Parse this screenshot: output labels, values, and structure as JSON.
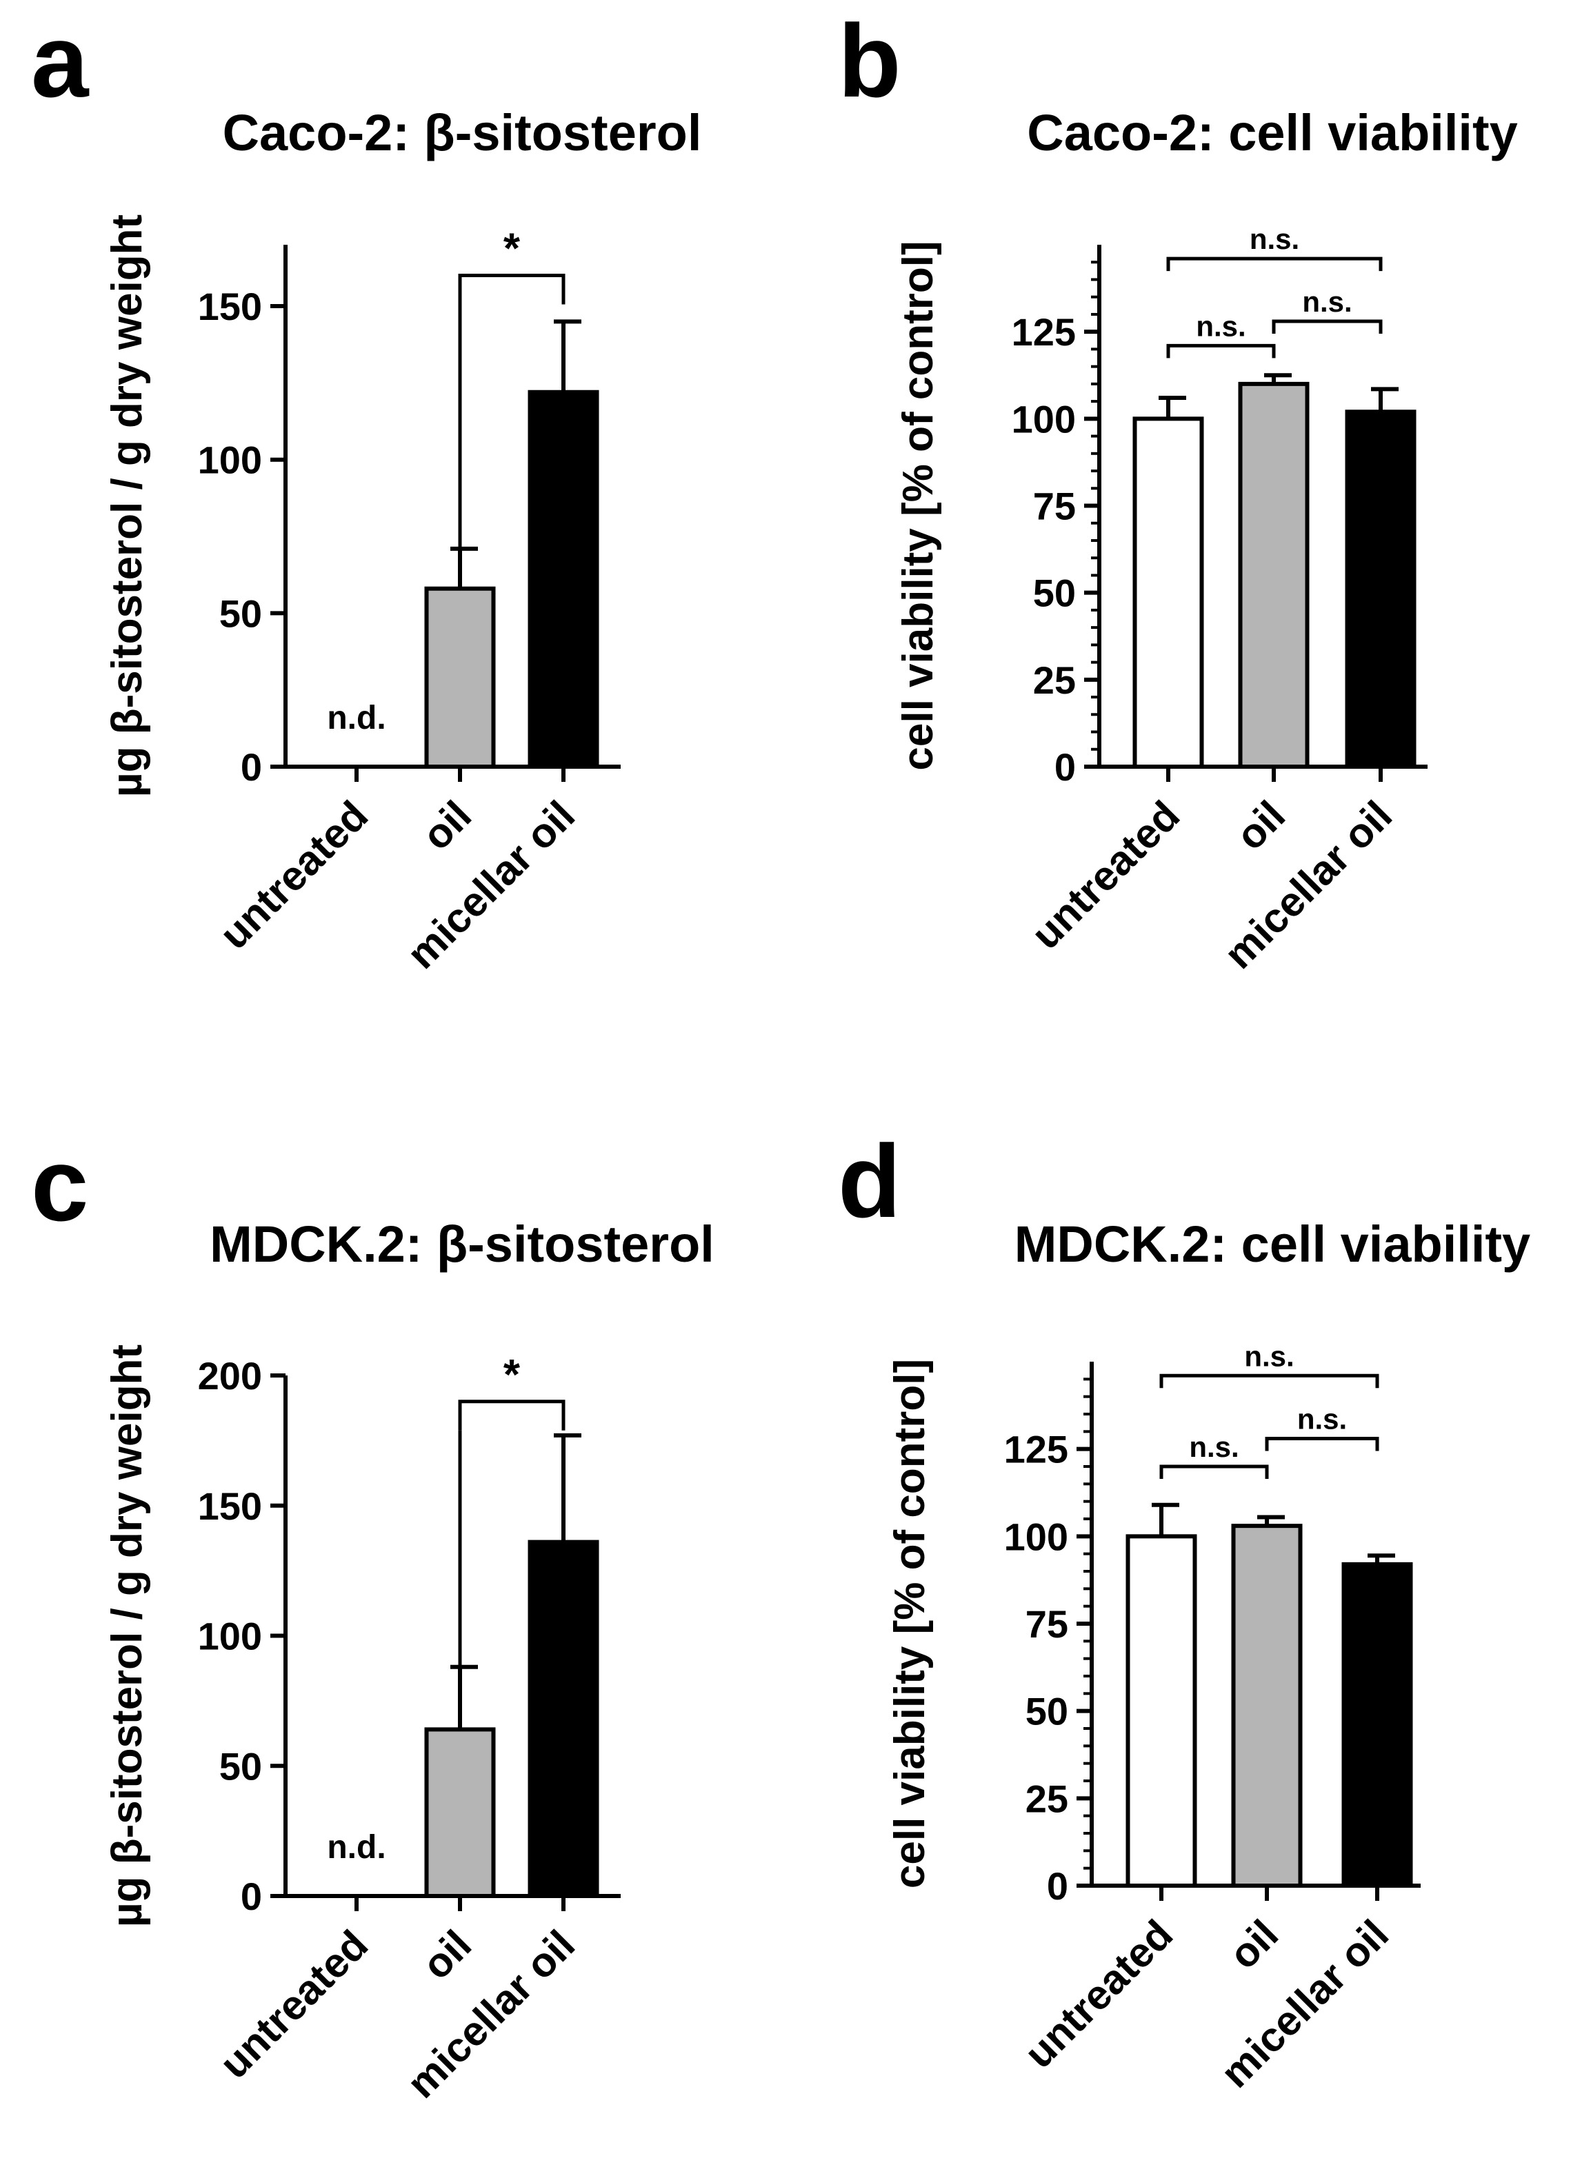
{
  "colors": {
    "untreated": "#ffffff",
    "oil": "#b5b5b5",
    "micellar_oil": "#000000",
    "axis": "#000000"
  },
  "chart_data": [
    {
      "id": "a",
      "type": "bar",
      "panel_label": "a",
      "title": "Caco-2: β-sitosterol",
      "ylabel": "µg β-sitosterol / g dry weight",
      "xlabel": "",
      "categories": [
        "untreated",
        "oil",
        "micellar oil"
      ],
      "values": [
        0,
        58,
        122
      ],
      "errors": [
        0,
        13,
        23
      ],
      "ylim": [
        0,
        170
      ],
      "yticks": [
        0,
        50,
        100,
        150
      ],
      "ytick_labels": [
        "0",
        "50",
        "100",
        "150"
      ],
      "minor_ticks": false,
      "bar_notes": [
        "n.d.",
        "",
        ""
      ],
      "significance": [
        {
          "from": 1,
          "to": 2,
          "y": 160,
          "label": "*",
          "style": "star"
        }
      ]
    },
    {
      "id": "b",
      "type": "bar",
      "panel_label": "b",
      "title": "Caco-2: cell viability",
      "ylabel": "cell viability [% of control]",
      "xlabel": "",
      "categories": [
        "untreated",
        "oil",
        "micellar oil"
      ],
      "values": [
        100,
        110,
        102
      ],
      "errors": [
        6,
        2.5,
        6.5
      ],
      "ylim": [
        0,
        150
      ],
      "yticks": [
        0,
        25,
        50,
        75,
        100,
        125
      ],
      "ytick_labels": [
        "0",
        "25",
        "50",
        "75",
        "100",
        "125"
      ],
      "minor_ticks": true,
      "bar_notes": [
        "",
        "",
        ""
      ],
      "significance": [
        {
          "from": 0,
          "to": 1,
          "y": 121,
          "label": "n.s.",
          "style": "ns"
        },
        {
          "from": 1,
          "to": 2,
          "y": 128,
          "label": "n.s.",
          "style": "ns"
        },
        {
          "from": 0,
          "to": 2,
          "y": 146,
          "label": "n.s.",
          "style": "ns"
        }
      ]
    },
    {
      "id": "c",
      "type": "bar",
      "panel_label": "c",
      "title": "MDCK.2: β-sitosterol",
      "ylabel": "µg β-sitosterol / g dry weight",
      "xlabel": "",
      "categories": [
        "untreated",
        "oil",
        "micellar oil"
      ],
      "values": [
        0,
        64,
        136
      ],
      "errors": [
        0,
        24,
        41
      ],
      "ylim": [
        0,
        200
      ],
      "yticks": [
        0,
        50,
        100,
        150,
        200
      ],
      "ytick_labels": [
        "0",
        "50",
        "100",
        "150",
        "200"
      ],
      "minor_ticks": false,
      "bar_notes": [
        "n.d.",
        "",
        ""
      ],
      "significance": [
        {
          "from": 1,
          "to": 2,
          "y": 190,
          "label": "*",
          "style": "star"
        }
      ]
    },
    {
      "id": "d",
      "type": "bar",
      "panel_label": "d",
      "title": "MDCK.2: cell viability",
      "ylabel": "cell viability [% of control]",
      "xlabel": "",
      "categories": [
        "untreated",
        "oil",
        "micellar oil"
      ],
      "values": [
        100,
        103,
        92
      ],
      "errors": [
        9,
        2.5,
        2.5
      ],
      "ylim": [
        0,
        150
      ],
      "yticks": [
        0,
        25,
        50,
        75,
        100,
        125
      ],
      "ytick_labels": [
        "0",
        "25",
        "50",
        "75",
        "100",
        "125"
      ],
      "minor_ticks": true,
      "bar_notes": [
        "",
        "",
        ""
      ],
      "significance": [
        {
          "from": 0,
          "to": 1,
          "y": 120,
          "label": "n.s.",
          "style": "ns"
        },
        {
          "from": 1,
          "to": 2,
          "y": 128,
          "label": "n.s.",
          "style": "ns"
        },
        {
          "from": 0,
          "to": 2,
          "y": 146,
          "label": "n.s.",
          "style": "ns"
        }
      ]
    }
  ]
}
